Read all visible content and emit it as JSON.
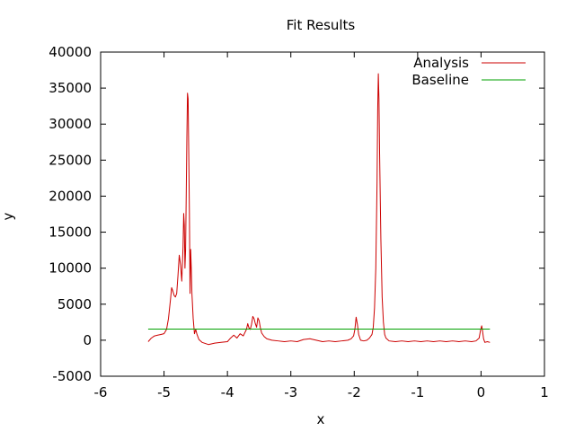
{
  "chart_data": {
    "type": "line",
    "title": "Fit Results",
    "xlabel": "x",
    "ylabel": "y",
    "xlim": [
      -6,
      1
    ],
    "ylim": [
      -5000,
      40000
    ],
    "xticks": [
      -6,
      -5,
      -4,
      -3,
      -2,
      -1,
      0,
      1
    ],
    "yticks": [
      -5000,
      0,
      5000,
      10000,
      15000,
      20000,
      25000,
      30000,
      35000,
      40000
    ],
    "grid": false,
    "legend_position": "top-right",
    "series": [
      {
        "name": "Analysis",
        "color": "#cc0000",
        "points": [
          [
            -5.25,
            -200
          ],
          [
            -5.2,
            300
          ],
          [
            -5.15,
            600
          ],
          [
            -5.1,
            700
          ],
          [
            -5.05,
            800
          ],
          [
            -5.0,
            900
          ],
          [
            -4.96,
            1500
          ],
          [
            -4.93,
            3000
          ],
          [
            -4.9,
            5500
          ],
          [
            -4.88,
            7300
          ],
          [
            -4.86,
            6800
          ],
          [
            -4.84,
            6200
          ],
          [
            -4.82,
            6000
          ],
          [
            -4.8,
            6500
          ],
          [
            -4.78,
            9000
          ],
          [
            -4.76,
            11800
          ],
          [
            -4.74,
            10500
          ],
          [
            -4.72,
            8200
          ],
          [
            -4.7,
            13000
          ],
          [
            -4.69,
            17600
          ],
          [
            -4.68,
            16000
          ],
          [
            -4.67,
            10000
          ],
          [
            -4.66,
            12500
          ],
          [
            -4.65,
            20000
          ],
          [
            -4.64,
            28000
          ],
          [
            -4.63,
            34300
          ],
          [
            -4.62,
            33500
          ],
          [
            -4.61,
            26000
          ],
          [
            -4.6,
            18000
          ],
          [
            -4.59,
            6500
          ],
          [
            -4.58,
            12600
          ],
          [
            -4.57,
            10000
          ],
          [
            -4.56,
            6500
          ],
          [
            -4.54,
            3000
          ],
          [
            -4.52,
            900
          ],
          [
            -4.5,
            1500
          ],
          [
            -4.48,
            800
          ],
          [
            -4.45,
            100
          ],
          [
            -4.4,
            -300
          ],
          [
            -4.3,
            -600
          ],
          [
            -4.2,
            -400
          ],
          [
            -4.1,
            -300
          ],
          [
            -4.0,
            -200
          ],
          [
            -3.95,
            300
          ],
          [
            -3.9,
            700
          ],
          [
            -3.85,
            300
          ],
          [
            -3.8,
            900
          ],
          [
            -3.75,
            600
          ],
          [
            -3.7,
            1500
          ],
          [
            -3.68,
            2300
          ],
          [
            -3.66,
            1700
          ],
          [
            -3.64,
            1500
          ],
          [
            -3.62,
            2200
          ],
          [
            -3.6,
            3300
          ],
          [
            -3.58,
            3000
          ],
          [
            -3.56,
            2300
          ],
          [
            -3.54,
            1800
          ],
          [
            -3.52,
            3100
          ],
          [
            -3.5,
            2700
          ],
          [
            -3.48,
            1700
          ],
          [
            -3.46,
            1000
          ],
          [
            -3.42,
            500
          ],
          [
            -3.38,
            200
          ],
          [
            -3.3,
            0
          ],
          [
            -3.2,
            -100
          ],
          [
            -3.1,
            -200
          ],
          [
            -3.0,
            -100
          ],
          [
            -2.9,
            -200
          ],
          [
            -2.8,
            100
          ],
          [
            -2.7,
            200
          ],
          [
            -2.6,
            0
          ],
          [
            -2.5,
            -200
          ],
          [
            -2.4,
            -100
          ],
          [
            -2.3,
            -200
          ],
          [
            -2.2,
            -100
          ],
          [
            -2.1,
            0
          ],
          [
            -2.05,
            200
          ],
          [
            -2.01,
            600
          ],
          [
            -1.99,
            1500
          ],
          [
            -1.97,
            3200
          ],
          [
            -1.95,
            2200
          ],
          [
            -1.93,
            800
          ],
          [
            -1.9,
            0
          ],
          [
            -1.85,
            -100
          ],
          [
            -1.8,
            0
          ],
          [
            -1.76,
            300
          ],
          [
            -1.72,
            800
          ],
          [
            -1.7,
            1800
          ],
          [
            -1.68,
            4500
          ],
          [
            -1.66,
            10000
          ],
          [
            -1.64,
            22000
          ],
          [
            -1.63,
            32000
          ],
          [
            -1.62,
            37000
          ],
          [
            -1.61,
            33500
          ],
          [
            -1.6,
            26000
          ],
          [
            -1.58,
            14000
          ],
          [
            -1.56,
            6000
          ],
          [
            -1.54,
            2500
          ],
          [
            -1.52,
            800
          ],
          [
            -1.5,
            300
          ],
          [
            -1.45,
            -100
          ],
          [
            -1.35,
            -200
          ],
          [
            -1.25,
            -100
          ],
          [
            -1.15,
            -200
          ],
          [
            -1.05,
            -100
          ],
          [
            -0.95,
            -200
          ],
          [
            -0.85,
            -100
          ],
          [
            -0.75,
            -200
          ],
          [
            -0.65,
            -100
          ],
          [
            -0.55,
            -200
          ],
          [
            -0.45,
            -100
          ],
          [
            -0.35,
            -200
          ],
          [
            -0.25,
            -100
          ],
          [
            -0.15,
            -200
          ],
          [
            -0.08,
            -100
          ],
          [
            -0.03,
            300
          ],
          [
            -0.01,
            1300
          ],
          [
            0.01,
            2000
          ],
          [
            0.02,
            1500
          ],
          [
            0.04,
            200
          ],
          [
            0.06,
            -300
          ],
          [
            0.1,
            -200
          ],
          [
            0.14,
            -300
          ]
        ]
      },
      {
        "name": "Baseline",
        "color": "#00a000",
        "points": [
          [
            -5.25,
            1550
          ],
          [
            0.14,
            1550
          ]
        ]
      }
    ]
  }
}
